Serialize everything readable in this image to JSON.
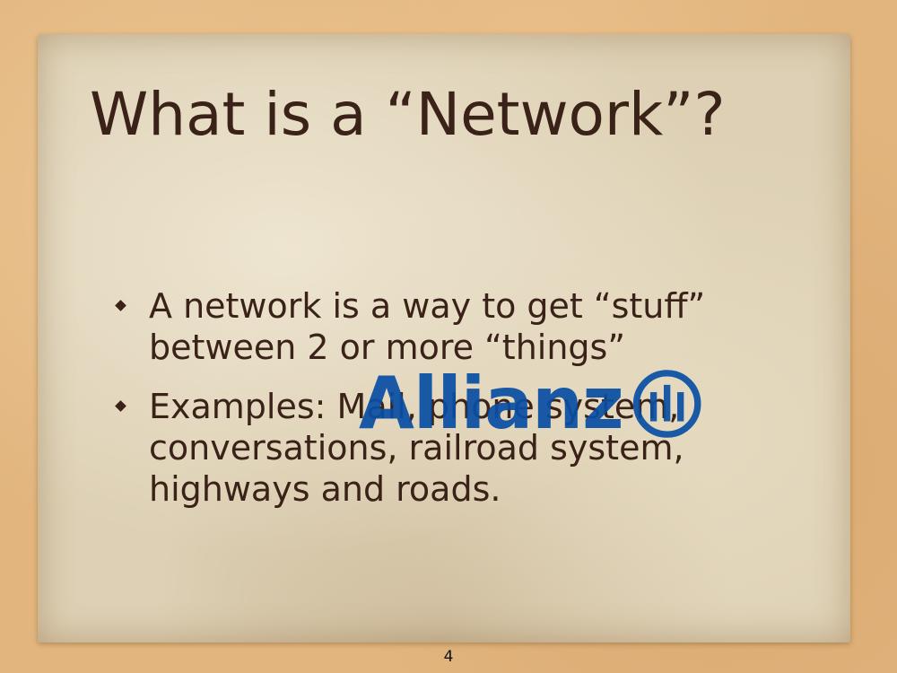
{
  "slide": {
    "title": "What is a “Network”?",
    "bullets": [
      "A network is a way to get “stuff” between 2 or more “things”",
      "Examples: Mail, phone system, conversations, railroad system, highways and roads."
    ],
    "page_number": "4"
  },
  "watermark": {
    "text": "Allianz",
    "color": "#0a4fa4",
    "icon": "allianz-eagle-icon"
  },
  "colors": {
    "text": "#3b2218",
    "paper": "#ddd0b4",
    "background": "#e2b57e"
  }
}
